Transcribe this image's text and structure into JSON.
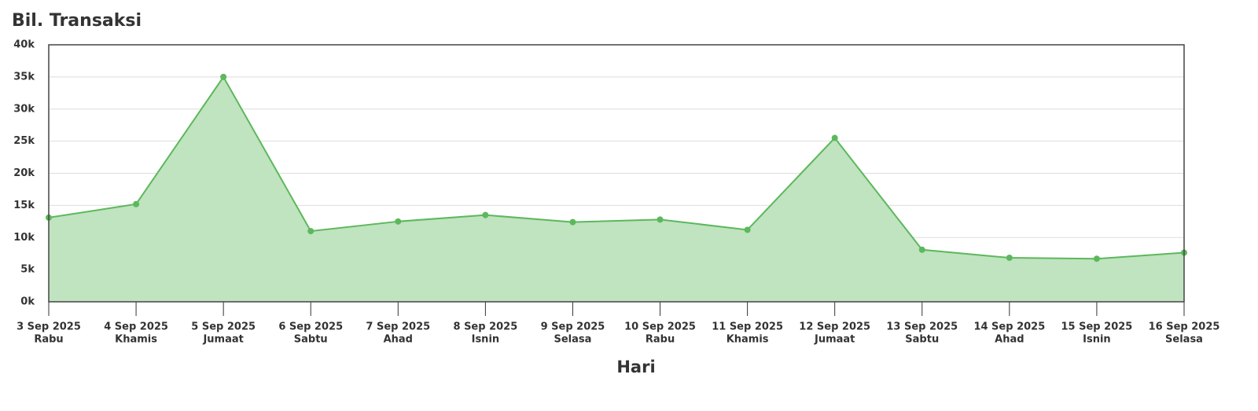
{
  "chart_data": {
    "type": "area",
    "title": "Bil. Transaksi",
    "x_label": "Hari",
    "categories": [
      "3 Sep 2025",
      "4 Sep 2025",
      "5 Sep 2025",
      "6 Sep 2025",
      "7 Sep 2025",
      "8 Sep 2025",
      "9 Sep 2025",
      "10 Sep 2025",
      "11 Sep 2025",
      "12 Sep 2025",
      "13 Sep 2025",
      "14 Sep 2025",
      "15 Sep 2025",
      "16 Sep 2025"
    ],
    "weekdays": [
      "Rabu",
      "Khamis",
      "Jumaat",
      "Sabtu",
      "Ahad",
      "Isnin",
      "Selasa",
      "Rabu",
      "Khamis",
      "Jumaat",
      "Sabtu",
      "Ahad",
      "Isnin",
      "Selasa"
    ],
    "series": [
      {
        "name": "Bil. Transaksi",
        "color": "#5cb85c",
        "fill": "#c0e3c0",
        "values": [
          13100,
          15200,
          35000,
          11000,
          12500,
          13500,
          12400,
          12800,
          11200,
          25500,
          8100,
          6850,
          6700,
          7650
        ]
      }
    ],
    "ylim": [
      0,
      40000
    ],
    "yticks": [
      {
        "value": 0,
        "label": "0k"
      },
      {
        "value": 5000,
        "label": "5k"
      },
      {
        "value": 10000,
        "label": "10k"
      },
      {
        "value": 15000,
        "label": "15k"
      },
      {
        "value": 20000,
        "label": "20k"
      },
      {
        "value": 25000,
        "label": "25k"
      },
      {
        "value": 30000,
        "label": "30k"
      },
      {
        "value": 35000,
        "label": "35k"
      },
      {
        "value": 40000,
        "label": "40k"
      }
    ],
    "grid": true
  }
}
